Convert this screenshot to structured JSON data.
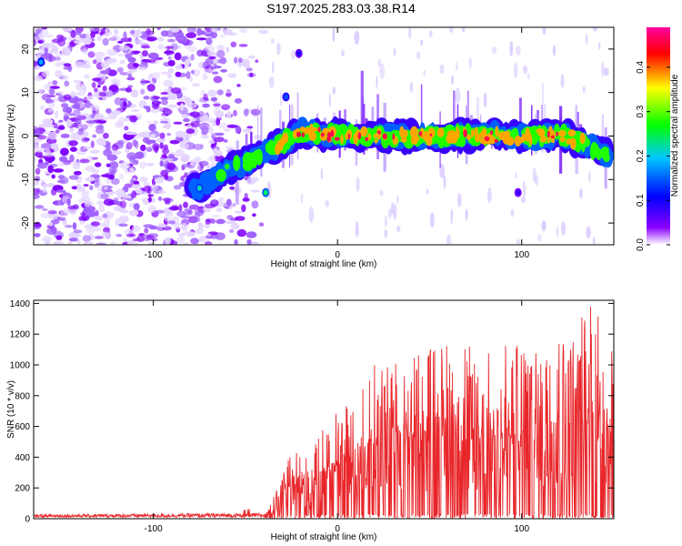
{
  "title": "S197.2025.283.03.38.R14",
  "chart_data": [
    {
      "type": "heatmap",
      "xlabel": "Height of straight line (km)",
      "ylabel": "Frequency (Hz)",
      "xlim": [
        -165,
        150
      ],
      "ylim": [
        -25,
        25
      ],
      "xticks": [
        -100,
        0,
        100
      ],
      "yticks": [
        -20,
        -10,
        0,
        10,
        20
      ],
      "colorbar": {
        "label": "Normalized spectral amplitude",
        "range": [
          0,
          0.49
        ],
        "ticks": [
          0,
          0.1,
          0.2,
          0.3,
          0.4
        ],
        "tick_labels": [
          "0.0",
          "0.1",
          "0.2",
          "0.3",
          "0.4"
        ],
        "colors": [
          "#ffffff",
          "#8a00ff",
          "#0000ff",
          "#00c8ff",
          "#00ff00",
          "#ffff00",
          "#ff0000",
          "#ff00a0"
        ]
      },
      "ridge": {
        "description_points_km": [
          -75,
          -60,
          -45,
          -35,
          -20,
          0,
          25,
          50,
          75,
          100,
          125,
          145
        ],
        "center_hz": [
          -12,
          -8,
          -5,
          -3,
          1,
          0,
          0,
          0,
          0,
          0,
          0,
          -4
        ],
        "peak_amplitude": [
          0.2,
          0.25,
          0.3,
          0.3,
          0.4,
          0.42,
          0.4,
          0.38,
          0.42,
          0.35,
          0.4,
          0.3
        ]
      }
    },
    {
      "type": "line",
      "xlabel": "Height of straight line (km)",
      "ylabel": "SNR (10 * v/v)",
      "xlim": [
        -165,
        150
      ],
      "ylim": [
        0,
        1420
      ],
      "xticks": [
        -100,
        0,
        100
      ],
      "yticks": [
        0,
        200,
        400,
        600,
        800,
        1000,
        1200,
        1400
      ],
      "color": "#e8262a",
      "envelope_x": [
        -165,
        -40,
        -35,
        -25,
        -15,
        -5,
        10,
        25,
        40,
        60,
        80,
        100,
        115,
        130,
        140,
        150
      ],
      "envelope_y": [
        28,
        40,
        140,
        480,
        400,
        700,
        800,
        1100,
        1080,
        1150,
        1100,
        1150,
        1200,
        1300,
        1420,
        1200
      ],
      "samples": 1400
    }
  ]
}
